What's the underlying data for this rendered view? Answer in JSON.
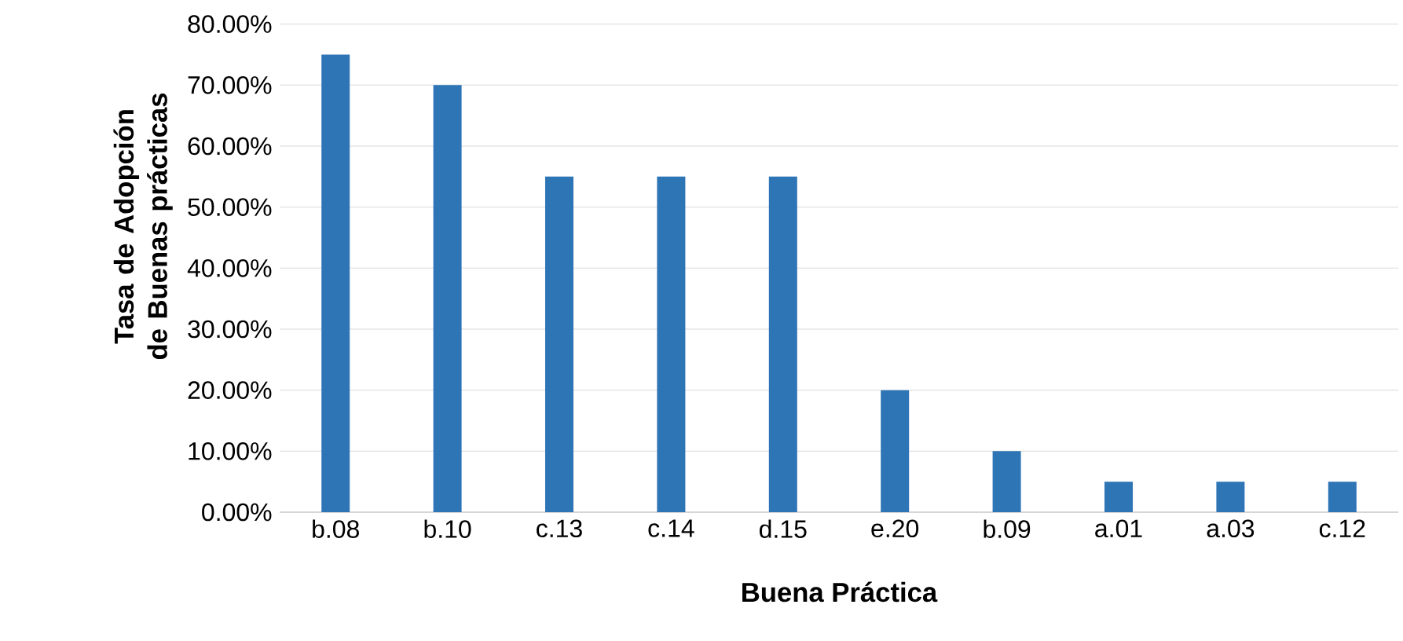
{
  "chart_data": {
    "type": "bar",
    "xlabel": "Buena Práctica",
    "ylabel": "Tasa de Adopción de Buenas prácticas",
    "categories": [
      "b.08",
      "b.10",
      "c.13",
      "c.14",
      "d.15",
      "e.20",
      "b.09",
      "a.01",
      "a.03",
      "c.12"
    ],
    "values": [
      75,
      70,
      55,
      55,
      55,
      20,
      10,
      5,
      5,
      5
    ],
    "color": "#2e75b6",
    "ylim": [
      0,
      80
    ],
    "yticks": [
      {
        "value": 0,
        "label": "0.00%"
      },
      {
        "value": 10,
        "label": "10.00%"
      },
      {
        "value": 20,
        "label": "20.00%"
      },
      {
        "value": 30,
        "label": "30.00%"
      },
      {
        "value": 40,
        "label": "40.00%"
      },
      {
        "value": 50,
        "label": "50.00%"
      },
      {
        "value": 60,
        "label": "60.00%"
      },
      {
        "value": 70,
        "label": "70.00%"
      },
      {
        "value": 80,
        "label": "80.00%"
      }
    ],
    "grid": "y"
  }
}
